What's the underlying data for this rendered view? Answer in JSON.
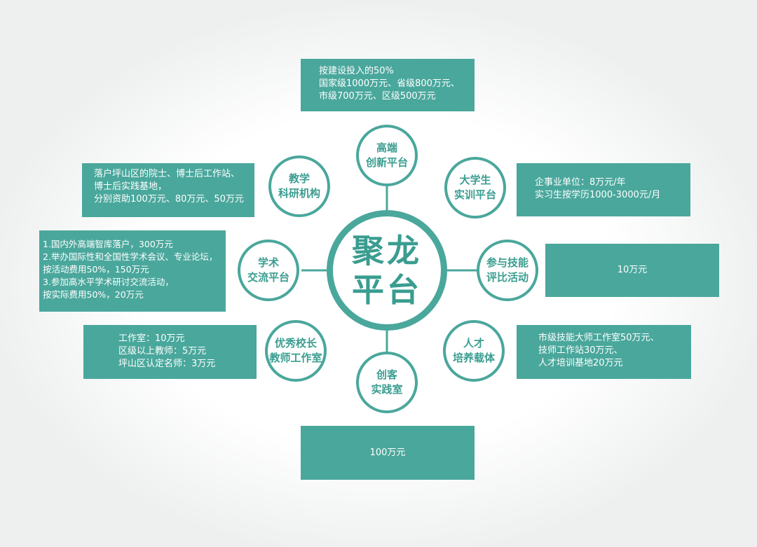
{
  "hub": {
    "lines": [
      "聚龙",
      "平台"
    ]
  },
  "nodes": {
    "top": [
      "高端",
      "创新平台"
    ],
    "upper_left": [
      "教学",
      "科研机构"
    ],
    "upper_right": [
      "大学生",
      "实训平台"
    ],
    "left": [
      "学术",
      "交流平台"
    ],
    "right": [
      "参与技能",
      "评比活动"
    ],
    "lower_left": [
      "优秀校长",
      "教师工作室"
    ],
    "lower_right": [
      "人才",
      "培养载体"
    ],
    "bottom": [
      "创客",
      "实践室"
    ]
  },
  "boxes": {
    "top": [
      "按建设投入的50%",
      "国家级1000万元、省级800万元、",
      "市级700万元、区级500万元"
    ],
    "upper_left": [
      "落户坪山区的院士、博士后工作站、",
      "博士后实践基地，",
      "分别资助100万元、80万元、50万元"
    ],
    "upper_right": [
      "企事业单位：8万元/年",
      "实习生按学历1000-3000元/月"
    ],
    "left": [
      "1.国内外高端智库落户，300万元",
      "2.举办国际性和全国性学术会议、专业论坛，",
      "按活动费用50%，150万元",
      "3.参加高水平学术研讨交流活动，",
      "按实际费用50%，20万元"
    ],
    "right": [
      "10万元"
    ],
    "lower_left": [
      "工作室：10万元",
      "区级以上教师：5万元",
      "坪山区认定名师：3万元"
    ],
    "lower_right": [
      "市级技能大师工作室50万元、",
      "技师工作站30万元、",
      "人才培训基地20万元"
    ],
    "bottom": [
      "100万元"
    ]
  },
  "colors": {
    "accent": "#4aa79c",
    "accent_text": "#3a9d90",
    "box_text": "#ffffff"
  }
}
